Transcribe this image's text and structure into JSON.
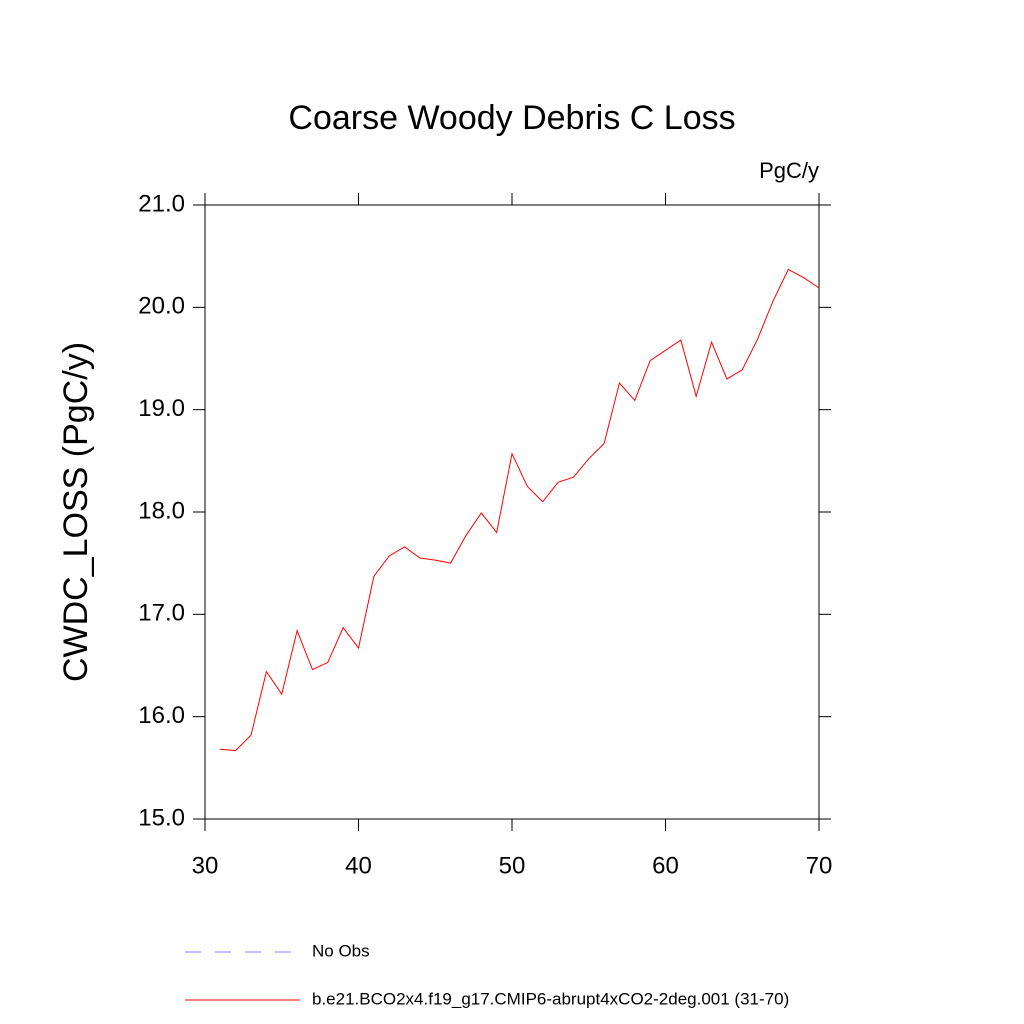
{
  "chart_data": {
    "type": "line",
    "title": "Coarse Woody Debris C Loss",
    "units": "PgC/y",
    "y_label": "CWDC_LOSS  (PgC/y)",
    "x": [
      31,
      32,
      33,
      34,
      35,
      36,
      37,
      38,
      39,
      40,
      41,
      42,
      43,
      44,
      45,
      46,
      47,
      48,
      49,
      50,
      51,
      52,
      53,
      54,
      55,
      56,
      57,
      58,
      59,
      60,
      61,
      62,
      63,
      64,
      65,
      66,
      67,
      68,
      69,
      70
    ],
    "series": [
      {
        "name": "b.e21.BCO2x4.f19_g17.CMIP6-abrupt4xCO2-2deg.001 (31-70)",
        "color": "#ff0000",
        "values": [
          15.68,
          15.67,
          15.82,
          16.44,
          16.22,
          16.84,
          16.46,
          16.53,
          16.87,
          16.67,
          17.37,
          17.57,
          17.66,
          17.55,
          17.53,
          17.5,
          17.77,
          17.99,
          17.8,
          18.57,
          18.25,
          18.1,
          18.29,
          18.34,
          18.52,
          18.67,
          19.26,
          19.09,
          19.48,
          19.58,
          19.68,
          19.13,
          19.66,
          19.3,
          19.39,
          19.69,
          20.06,
          20.37,
          20.29,
          20.19
        ]
      }
    ],
    "legend_extra": [
      {
        "name": "No Obs",
        "color": "#8080ff",
        "dashed": true
      }
    ],
    "xlim": [
      30,
      70
    ],
    "xticks": [
      30,
      40,
      50,
      60,
      70
    ],
    "ylim": [
      15,
      21
    ],
    "yticks": [
      {
        "value": 15,
        "label": "15.0"
      },
      {
        "value": 16,
        "label": "16.0"
      },
      {
        "value": 17,
        "label": "17.0"
      },
      {
        "value": 18,
        "label": "18.0"
      },
      {
        "value": 19,
        "label": "19.0"
      },
      {
        "value": 20,
        "label": "20.0"
      },
      {
        "value": 21,
        "label": "21.0"
      }
    ]
  }
}
